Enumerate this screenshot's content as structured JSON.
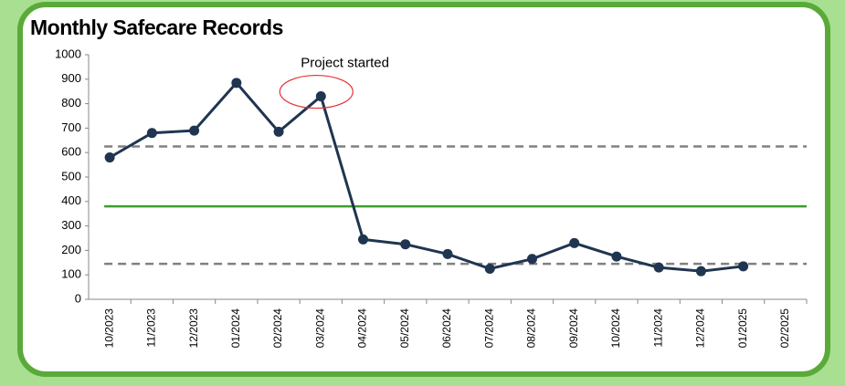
{
  "chart_data": {
    "type": "line",
    "title": "Monthly Safecare Records",
    "categories": [
      "10/2023",
      "11/2023",
      "12/2023",
      "01/2024",
      "02/2024",
      "03/2024",
      "04/2024",
      "05/2024",
      "06/2024",
      "07/2024",
      "08/2024",
      "09/2024",
      "10/2024",
      "11/2024",
      "12/2024",
      "01/2025",
      "02/2025"
    ],
    "series": [
      {
        "color": "#1f3550",
        "values": [
          580,
          680,
          690,
          885,
          685,
          830,
          245,
          225,
          185,
          125,
          165,
          230,
          175,
          130,
          115,
          135,
          null
        ]
      }
    ],
    "reference_lines": [
      {
        "value": 625,
        "color": "#808080",
        "style": "dashed"
      },
      {
        "value": 380,
        "color": "#3aa02a",
        "style": "solid"
      },
      {
        "value": 145,
        "color": "#808080",
        "style": "dashed"
      }
    ],
    "annotations": [
      {
        "text": "Project started",
        "x": "03/2024",
        "color": "#e53030"
      }
    ],
    "ylim": [
      0,
      1000
    ],
    "yticks": [
      0,
      100,
      200,
      300,
      400,
      500,
      600,
      700,
      800,
      900,
      1000
    ],
    "grid": false
  }
}
